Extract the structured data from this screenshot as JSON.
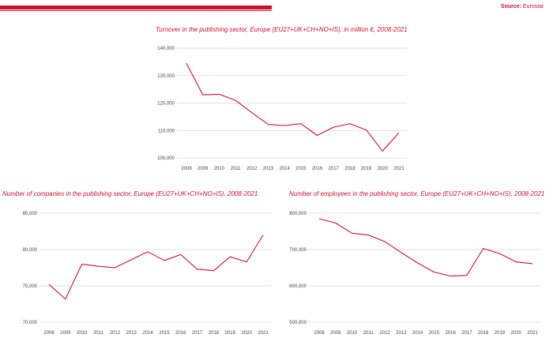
{
  "header": {
    "source_label": "Source:",
    "source_value": "Eurostat",
    "accent_color": "#c8102e"
  },
  "chart_data": [
    {
      "type": "line",
      "title": "Turnover in the publishing sector, Europe (EU27+UK+CH+NO+IS), in million €, 2008-2021",
      "x": [
        "2008",
        "2009",
        "2010",
        "2011",
        "2012",
        "2013",
        "2014",
        "2015",
        "2016",
        "2017",
        "2018",
        "2019",
        "2020",
        "2021"
      ],
      "y": [
        134500,
        123000,
        123200,
        121000,
        116500,
        112200,
        111800,
        112500,
        108200,
        111200,
        112500,
        110200,
        102500,
        109200
      ],
      "ylim": [
        100000,
        140000
      ],
      "yticks": [
        "140,000",
        "130,000",
        "120,000",
        "110,000",
        "100,000"
      ],
      "ytick_values": [
        140000,
        130000,
        120000,
        110000,
        100000
      ],
      "grid": true,
      "color": "#c8102e"
    },
    {
      "type": "line",
      "title": "Number of companies in the publishing sector, Europe (EU27+UK+CH+NO+IS), 2008-2021",
      "x": [
        "2008",
        "2009",
        "2010",
        "2011",
        "2012",
        "2013",
        "2014",
        "2015",
        "2016",
        "2017",
        "2018",
        "2019",
        "2020",
        "2021"
      ],
      "y": [
        75200,
        73200,
        78000,
        77700,
        77500,
        78600,
        79700,
        78500,
        79300,
        77300,
        77100,
        79000,
        78300,
        82000
      ],
      "ylim": [
        70000,
        85000
      ],
      "yticks": [
        "85,000",
        "80,000",
        "75,000",
        "70,000"
      ],
      "ytick_values": [
        85000,
        80000,
        75000,
        70000
      ],
      "grid": true,
      "color": "#c8102e"
    },
    {
      "type": "line",
      "title": "Number of employees in the publishing sector, Europe (EU27+UK+CH+NO+IS), 2008-2021",
      "x": [
        "2008",
        "2009",
        "2010",
        "2011",
        "2012",
        "2013",
        "2014",
        "2015",
        "2016",
        "2017",
        "2018",
        "2019",
        "2020",
        "2021"
      ],
      "y": [
        785000,
        773000,
        745000,
        740000,
        722000,
        692000,
        663000,
        638000,
        627000,
        629000,
        703000,
        689000,
        666000,
        661000
      ],
      "ylim": [
        500000,
        800000
      ],
      "yticks": [
        "800,000",
        "700,000",
        "600,000",
        "500,000"
      ],
      "ytick_values": [
        800000,
        700000,
        600000,
        500000
      ],
      "grid": true,
      "color": "#c8102e"
    }
  ]
}
